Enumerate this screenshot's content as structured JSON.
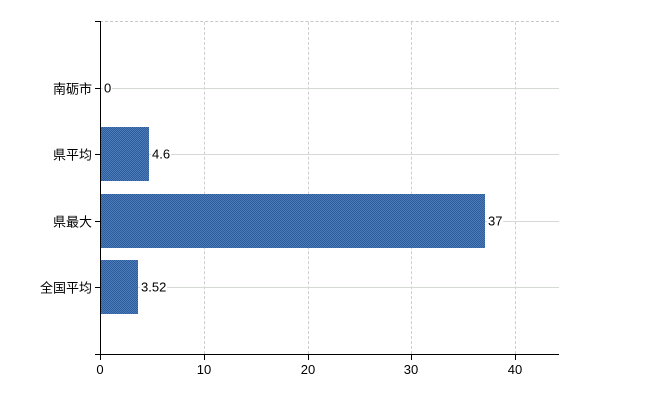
{
  "chart_data": {
    "type": "bar",
    "orientation": "horizontal",
    "title": "",
    "xlabel": "",
    "ylabel": "",
    "categories": [
      "南砺市",
      "県平均",
      "県最大",
      "全国平均"
    ],
    "values": [
      0,
      4.6,
      37,
      3.52
    ],
    "value_labels": [
      "0",
      "4.6",
      "37",
      "3.52"
    ],
    "x_tick_labels": [
      "0",
      "10",
      "20",
      "30",
      "40"
    ],
    "x_tick_values": [
      0,
      10,
      20,
      30,
      40
    ],
    "xlim": [
      0,
      44.25
    ],
    "grid": true,
    "legend": false,
    "colors": {
      "bar_primary": "#3d6ca8",
      "bar_dither_dark": "#2d5c9c",
      "bar_dither_light": "#4d7cb8",
      "axis": "#000000",
      "gridline_horizontal": "#d5dad5",
      "gridline_vertical": "#d1ccd1",
      "plot_top_border": "#c9c6c9",
      "background": "#ffffff",
      "text": "#000000"
    }
  }
}
